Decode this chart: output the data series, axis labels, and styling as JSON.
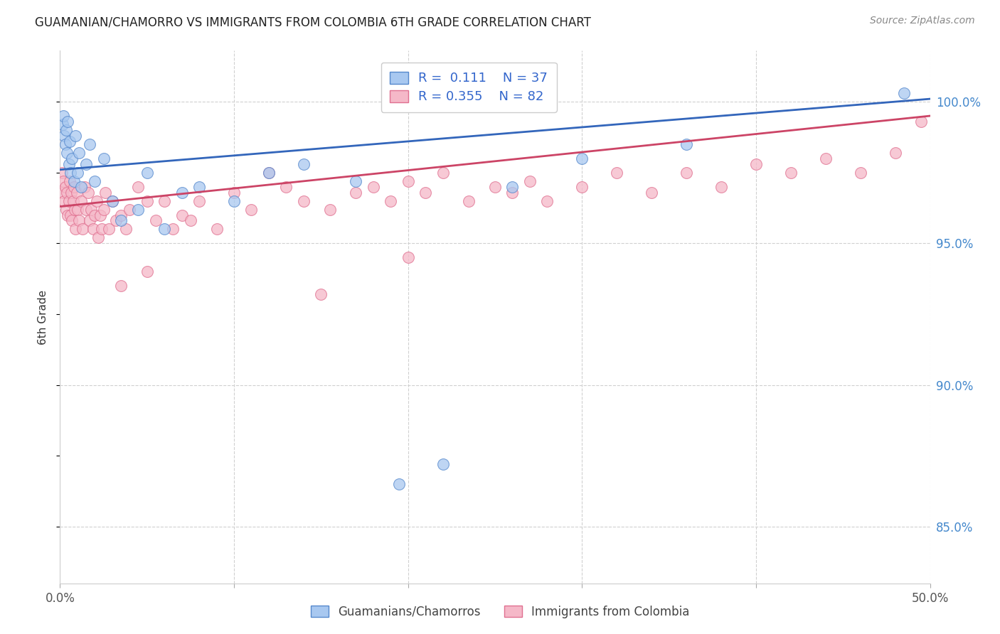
{
  "title": "GUAMANIAN/CHAMORRO VS IMMIGRANTS FROM COLOMBIA 6TH GRADE CORRELATION CHART",
  "source": "Source: ZipAtlas.com",
  "ylabel": "6th Grade",
  "xlim": [
    0.0,
    50.0
  ],
  "ylim": [
    83.0,
    101.8
  ],
  "y_ticks_right": [
    85.0,
    90.0,
    95.0,
    100.0
  ],
  "grid_color": "#d0d0d0",
  "background_color": "#ffffff",
  "blue_color": "#a8c8f0",
  "pink_color": "#f5b8c8",
  "blue_edge_color": "#5588cc",
  "pink_edge_color": "#e07090",
  "blue_line_color": "#3366bb",
  "pink_line_color": "#cc4466",
  "R_blue": 0.111,
  "N_blue": 37,
  "R_pink": 0.355,
  "N_pink": 82,
  "legend_label_blue": "Guamanians/Chamorros",
  "legend_label_pink": "Immigrants from Colombia",
  "blue_line_x0": 0.0,
  "blue_line_y0": 97.6,
  "blue_line_x1": 50.0,
  "blue_line_y1": 100.1,
  "pink_line_x0": 0.0,
  "pink_line_y0": 96.3,
  "pink_line_x1": 50.0,
  "pink_line_y1": 99.5,
  "blue_dash_x0": 36.0,
  "blue_dash_y0": 99.4,
  "blue_dash_x1": 50.0,
  "blue_dash_y1": 100.1,
  "pink_dash_x0": 36.0,
  "pink_dash_y0": 98.6,
  "pink_dash_x1": 50.0,
  "pink_dash_y1": 99.5,
  "blue_x": [
    0.15,
    0.2,
    0.25,
    0.3,
    0.35,
    0.4,
    0.45,
    0.5,
    0.55,
    0.6,
    0.7,
    0.8,
    0.9,
    1.0,
    1.1,
    1.2,
    1.5,
    1.7,
    2.0,
    2.5,
    3.0,
    3.5,
    4.5,
    5.0,
    6.0,
    7.0,
    8.0,
    10.0,
    12.0,
    14.0,
    17.0,
    19.5,
    22.0,
    26.0,
    30.0,
    36.0,
    48.5
  ],
  "blue_y": [
    99.2,
    99.5,
    98.8,
    98.5,
    99.0,
    98.2,
    99.3,
    97.8,
    98.6,
    97.5,
    98.0,
    97.2,
    98.8,
    97.5,
    98.2,
    97.0,
    97.8,
    98.5,
    97.2,
    98.0,
    96.5,
    95.8,
    96.2,
    97.5,
    95.5,
    96.8,
    97.0,
    96.5,
    97.5,
    97.8,
    97.2,
    86.5,
    87.2,
    97.0,
    98.0,
    98.5,
    100.3
  ],
  "pink_x": [
    0.1,
    0.15,
    0.2,
    0.25,
    0.3,
    0.35,
    0.4,
    0.45,
    0.5,
    0.55,
    0.6,
    0.65,
    0.7,
    0.75,
    0.8,
    0.85,
    0.9,
    0.95,
    1.0,
    1.1,
    1.2,
    1.3,
    1.4,
    1.5,
    1.6,
    1.7,
    1.8,
    1.9,
    2.0,
    2.1,
    2.2,
    2.3,
    2.4,
    2.5,
    2.6,
    2.8,
    3.0,
    3.2,
    3.5,
    3.8,
    4.0,
    4.5,
    5.0,
    5.5,
    6.0,
    6.5,
    7.0,
    7.5,
    8.0,
    9.0,
    10.0,
    11.0,
    12.0,
    13.0,
    14.0,
    15.5,
    17.0,
    18.0,
    19.0,
    20.0,
    21.0,
    22.0,
    23.5,
    25.0,
    26.0,
    27.0,
    28.0,
    30.0,
    32.0,
    34.0,
    36.0,
    38.0,
    40.0,
    42.0,
    44.0,
    46.0,
    48.0,
    49.5,
    3.5,
    5.0,
    15.0,
    20.0
  ],
  "pink_y": [
    97.5,
    96.8,
    97.2,
    96.5,
    97.0,
    96.2,
    96.8,
    96.0,
    96.5,
    97.2,
    96.0,
    96.8,
    95.8,
    96.5,
    97.0,
    96.2,
    95.5,
    96.8,
    96.2,
    95.8,
    96.5,
    95.5,
    97.0,
    96.2,
    96.8,
    95.8,
    96.2,
    95.5,
    96.0,
    96.5,
    95.2,
    96.0,
    95.5,
    96.2,
    96.8,
    95.5,
    96.5,
    95.8,
    96.0,
    95.5,
    96.2,
    97.0,
    96.5,
    95.8,
    96.5,
    95.5,
    96.0,
    95.8,
    96.5,
    95.5,
    96.8,
    96.2,
    97.5,
    97.0,
    96.5,
    96.2,
    96.8,
    97.0,
    96.5,
    97.2,
    96.8,
    97.5,
    96.5,
    97.0,
    96.8,
    97.2,
    96.5,
    97.0,
    97.5,
    96.8,
    97.5,
    97.0,
    97.8,
    97.5,
    98.0,
    97.5,
    98.2,
    99.3,
    93.5,
    94.0,
    93.2,
    94.5
  ]
}
